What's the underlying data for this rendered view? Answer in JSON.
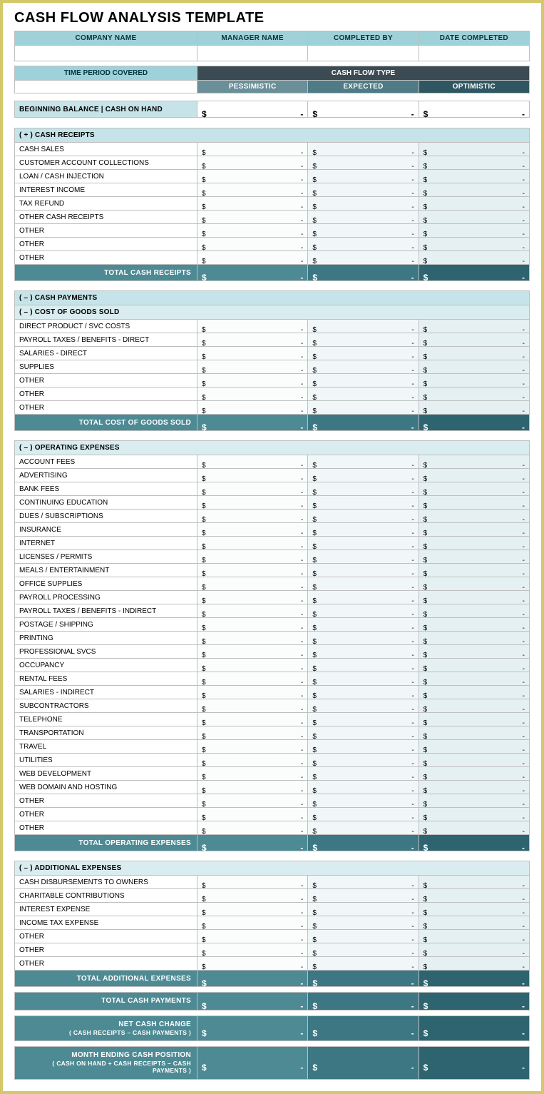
{
  "title": "CASH FLOW ANALYSIS TEMPLATE",
  "colors": {
    "page_border": "#d4c96a",
    "header_bg": "#9ed1d8",
    "header_fg": "#00343c",
    "dark_bar": "#3b4a53",
    "scen_p": "#6a8f99",
    "scen_e": "#4f7b86",
    "scen_o": "#2f5661",
    "section_bg": "#c5e3e8",
    "subsection_bg": "#d9ecef",
    "col1_bg": "#fbfdfd",
    "col2_bg": "#f1f7f8",
    "col3_bg": "#e5f0f2",
    "teal1": "#4d8a94",
    "teal2": "#3d7783",
    "teal3": "#2e6470",
    "grid": "#bfbfbf"
  },
  "header": {
    "company": "COMPANY NAME",
    "manager": "MANAGER NAME",
    "completed_by": "COMPLETED BY",
    "date_completed": "DATE COMPLETED",
    "time_period": "TIME PERIOD COVERED",
    "cash_flow_type": "CASH FLOW TYPE",
    "scenarios": {
      "p": "PESSIMISTIC",
      "e": "EXPECTED",
      "o": "OPTIMISTIC"
    }
  },
  "beginning_balance": {
    "label": "BEGINNING BALANCE  |  CASH ON HAND",
    "vals": [
      "-",
      "-",
      "-"
    ]
  },
  "dollar": "$",
  "dash": "-",
  "sections": {
    "receipts": {
      "title": "( + )  CASH RECEIPTS",
      "rows": [
        "CASH SALES",
        "CUSTOMER ACCOUNT COLLECTIONS",
        "LOAN / CASH INJECTION",
        "INTEREST INCOME",
        "TAX REFUND",
        "OTHER CASH RECEIPTS",
        "OTHER",
        "OTHER",
        "OTHER"
      ],
      "total_label": "TOTAL CASH RECEIPTS"
    },
    "payments_title": "( – )  CASH PAYMENTS",
    "cogs": {
      "title": "( – )  COST OF GOODS SOLD",
      "rows": [
        "DIRECT PRODUCT / SVC COSTS",
        "PAYROLL TAXES / BENEFITS - DIRECT",
        "SALARIES - DIRECT",
        "SUPPLIES",
        "OTHER",
        "OTHER",
        "OTHER"
      ],
      "total_label": "TOTAL COST OF GOODS SOLD"
    },
    "opex": {
      "title": "( – )  OPERATING EXPENSES",
      "rows": [
        "ACCOUNT FEES",
        "ADVERTISING",
        "BANK FEES",
        "CONTINUING EDUCATION",
        "DUES / SUBSCRIPTIONS",
        "INSURANCE",
        "INTERNET",
        "LICENSES / PERMITS",
        "MEALS / ENTERTAINMENT",
        "OFFICE SUPPLIES",
        "PAYROLL PROCESSING",
        "PAYROLL TAXES / BENEFITS - INDIRECT",
        "POSTAGE / SHIPPING",
        "PRINTING",
        "PROFESSIONAL SVCS",
        "OCCUPANCY",
        "RENTAL FEES",
        "SALARIES - INDIRECT",
        "SUBCONTRACTORS",
        "TELEPHONE",
        "TRANSPORTATION",
        "TRAVEL",
        "UTILITIES",
        "WEB DEVELOPMENT",
        "WEB DOMAIN AND HOSTING",
        "OTHER",
        "OTHER",
        "OTHER"
      ],
      "total_label": "TOTAL OPERATING EXPENSES"
    },
    "addl": {
      "title": "( – )  ADDITIONAL EXPENSES",
      "rows": [
        "CASH DISBURSEMENTS TO OWNERS",
        "CHARITABLE CONTRIBUTIONS",
        "INTEREST EXPENSE",
        "INCOME TAX EXPENSE",
        "OTHER",
        "OTHER",
        "OTHER"
      ],
      "total_label": "TOTAL ADDITIONAL EXPENSES"
    }
  },
  "summary": {
    "total_payments": "TOTAL CASH PAYMENTS",
    "net_change": "NET CASH CHANGE",
    "net_change_sub": "( CASH RECEIPTS – CASH PAYMENTS )",
    "ending": "MONTH ENDING CASH POSITION",
    "ending_sub": "( CASH ON HAND  +  CASH RECEIPTS  –  CASH PAYMENTS )"
  }
}
